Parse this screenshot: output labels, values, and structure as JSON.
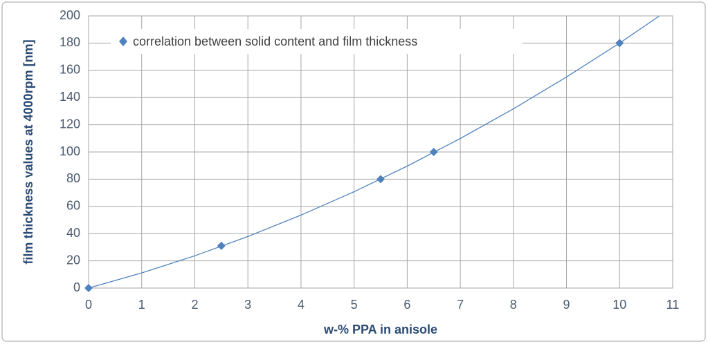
{
  "chart_data": {
    "type": "scatter",
    "xlabel": "w-% PPA in anisole",
    "ylabel": "film thickness values at 4000rpm [nm]",
    "series": [
      {
        "name": "correlation between solid content and film thickness",
        "color": "#4f81bd",
        "x": [
          0,
          2.5,
          5.5,
          6.5,
          10
        ],
        "values": [
          0,
          31,
          80,
          100,
          180
        ]
      }
    ],
    "trendline": {
      "color": "#4f81bd",
      "x": [
        0,
        1,
        2,
        3,
        4,
        5,
        6,
        7,
        8,
        9,
        10,
        10.75
      ],
      "values": [
        0,
        11.1,
        23.7,
        37.9,
        53.6,
        70.8,
        89.6,
        109.9,
        131.7,
        155.1,
        180,
        200
      ]
    },
    "xlim": [
      0,
      11
    ],
    "xticks": [
      0,
      1,
      2,
      3,
      4,
      5,
      6,
      7,
      8,
      9,
      10,
      11
    ],
    "ylim": [
      0,
      200
    ],
    "yticks": [
      0,
      20,
      40,
      60,
      80,
      100,
      120,
      140,
      160,
      180,
      200
    ],
    "grid": true,
    "legend": "top-left"
  }
}
